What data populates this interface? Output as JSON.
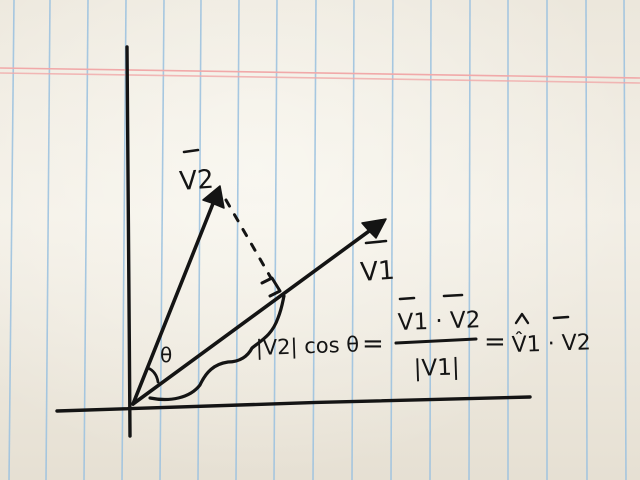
{
  "labels": {
    "v2": "V2",
    "v1": "V1",
    "theta": "θ",
    "projection": "|V2| cos θ",
    "equals_1": "=",
    "numerator": "V1 · V2",
    "denominator": "|V1|",
    "equals_2": "=",
    "unit_rhs": "V̂1 · V2"
  },
  "colors": {
    "paper": "#f1ede4",
    "ink": "#141414",
    "rule_lines": "#9ec3e0",
    "margin_line": "#f1a9a9"
  }
}
